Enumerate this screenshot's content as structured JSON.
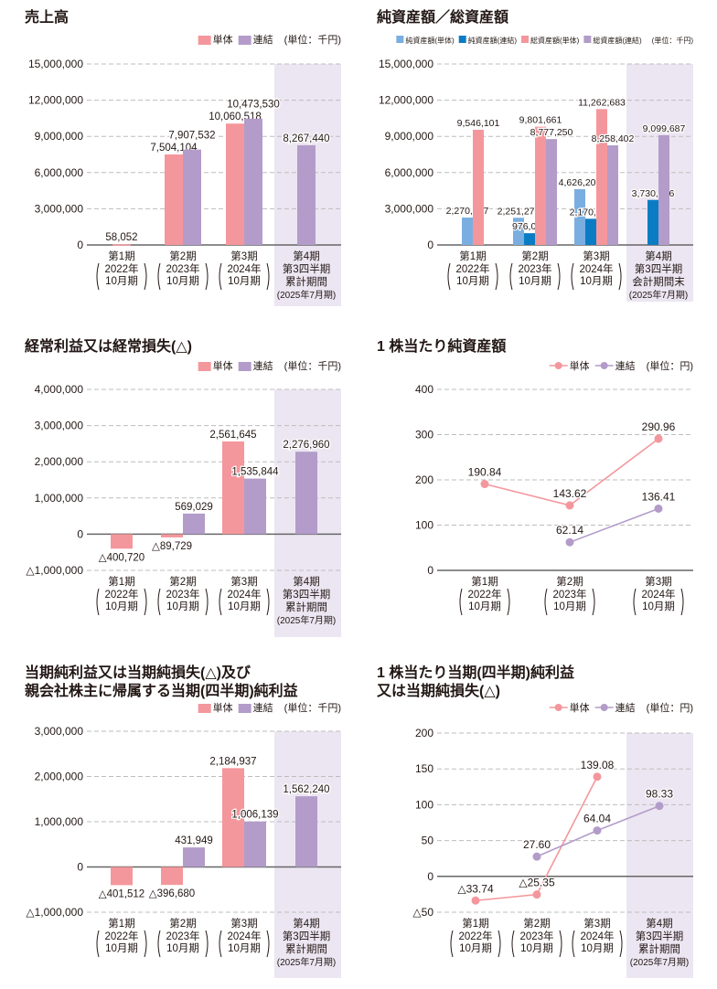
{
  "colors": {
    "pink": "#f4979c",
    "purple": "#b39cc9",
    "lightblue": "#7aaee0",
    "blue": "#0a7cc4",
    "shade": "#ece6f2",
    "grid": "#bdbdbd",
    "axis": "#666666"
  },
  "chart_data": [
    {
      "id": "sales",
      "type": "bar",
      "title": [
        "売上高"
      ],
      "unit": "(単位：千円)",
      "ylim": [
        0,
        15000000
      ],
      "yticks": [
        {
          "v": 0,
          "label": "0"
        },
        {
          "v": 3000000,
          "label": "3,000,000"
        },
        {
          "v": 6000000,
          "label": "6,000,000"
        },
        {
          "v": 9000000,
          "label": "9,000,000"
        },
        {
          "v": 12000000,
          "label": "12,000,000"
        },
        {
          "v": 15000000,
          "label": "15,000,000"
        }
      ],
      "categories": [
        {
          "head": "第1期",
          "paren": [
            "2022年",
            "10月期"
          ]
        },
        {
          "head": "第2期",
          "paren": [
            "2023年",
            "10月期"
          ]
        },
        {
          "head": "第3期",
          "paren": [
            "2024年",
            "10月期"
          ]
        },
        {
          "head": "第4期",
          "lines": [
            "第3四半期",
            "累計期間",
            "(2025年7月期)"
          ]
        }
      ],
      "shaded_category": 3,
      "series": [
        {
          "name": "単体",
          "color": "#f4979c",
          "values": [
            58052,
            7504104,
            10060518,
            null
          ],
          "labels": [
            "58,052",
            "7,504,104",
            "10,060,518",
            null
          ]
        },
        {
          "name": "連結",
          "color": "#b39cc9",
          "values": [
            null,
            7907532,
            10473530,
            8267440
          ],
          "labels": [
            null,
            "7,907,532",
            "10,473,530",
            "8,267,440"
          ]
        }
      ]
    },
    {
      "id": "assets",
      "type": "bar",
      "title": [
        "純資産額／総資産額"
      ],
      "unit": "(単位：千円)",
      "ylim": [
        0,
        15000000
      ],
      "yticks": [
        {
          "v": 0,
          "label": "0"
        },
        {
          "v": 3000000,
          "label": "3,000,000"
        },
        {
          "v": 6000000,
          "label": "6,000,000"
        },
        {
          "v": 9000000,
          "label": "9,000,000"
        },
        {
          "v": 12000000,
          "label": "12,000,000"
        },
        {
          "v": 15000000,
          "label": "15,000,000"
        }
      ],
      "categories": [
        {
          "head": "第1期",
          "paren": [
            "2022年",
            "10月期"
          ]
        },
        {
          "head": "第2期",
          "paren": [
            "2023年",
            "10月期"
          ]
        },
        {
          "head": "第3期",
          "paren": [
            "2024年",
            "10月期"
          ]
        },
        {
          "head": "第4期",
          "lines": [
            "第3四半期",
            "会計期間末",
            "(2025年7月期)"
          ]
        }
      ],
      "shaded_category": 3,
      "series": [
        {
          "name": "純資産額(単体)",
          "color": "#7aaee0",
          "values": [
            2270987,
            2251270,
            4626208,
            null
          ],
          "labels": [
            "2,270,987",
            "2,251,270",
            "4,626,208",
            null
          ]
        },
        {
          "name": "純資産額(連結)",
          "color": "#0a7cc4",
          "values": [
            null,
            976082,
            2170830,
            3730426
          ],
          "labels": [
            null,
            "976,082",
            "2,170,830",
            "3,730,426"
          ]
        },
        {
          "name": "総資産額(単体)",
          "color": "#f4979c",
          "values": [
            9546101,
            9801661,
            11262683,
            null
          ],
          "labels": [
            "9,546,101",
            "9,801,661",
            "11,262,683",
            null
          ]
        },
        {
          "name": "総資産額(連結)",
          "color": "#b39cc9",
          "values": [
            null,
            8777250,
            8258402,
            9099687
          ],
          "labels": [
            null,
            "8,777,250",
            "8,258,402",
            "9,099,687"
          ]
        }
      ]
    },
    {
      "id": "ordinary",
      "type": "bar",
      "title": [
        "経常利益又は経常損失(△)"
      ],
      "unit": "(単位：千円)",
      "ylim": [
        -1000000,
        4000000
      ],
      "yticks": [
        {
          "v": -1000000,
          "label": "△1,000,000"
        },
        {
          "v": 0,
          "label": "0"
        },
        {
          "v": 1000000,
          "label": "1,000,000"
        },
        {
          "v": 2000000,
          "label": "2,000,000"
        },
        {
          "v": 3000000,
          "label": "3,000,000"
        },
        {
          "v": 4000000,
          "label": "4,000,000"
        }
      ],
      "categories": [
        {
          "head": "第1期",
          "paren": [
            "2022年",
            "10月期"
          ]
        },
        {
          "head": "第2期",
          "paren": [
            "2023年",
            "10月期"
          ]
        },
        {
          "head": "第3期",
          "paren": [
            "2024年",
            "10月期"
          ]
        },
        {
          "head": "第4期",
          "lines": [
            "第3四半期",
            "累計期間",
            "(2025年7月期)"
          ]
        }
      ],
      "shaded_category": 3,
      "series": [
        {
          "name": "単体",
          "color": "#f4979c",
          "values": [
            -400720,
            -89729,
            2561645,
            null
          ],
          "labels": [
            "△400,720",
            "△89,729",
            "2,561,645",
            null
          ]
        },
        {
          "name": "連結",
          "color": "#b39cc9",
          "values": [
            null,
            569029,
            1535844,
            2276960
          ],
          "labels": [
            null,
            "569,029",
            "1,535,844",
            "2,276,960"
          ]
        }
      ]
    },
    {
      "id": "bps",
      "type": "line",
      "title": [
        "1 株当たり純資産額"
      ],
      "unit": "(単位：円)",
      "ylim": [
        0,
        400
      ],
      "yticks": [
        {
          "v": 0,
          "label": "0"
        },
        {
          "v": 100,
          "label": "100"
        },
        {
          "v": 200,
          "label": "200"
        },
        {
          "v": 300,
          "label": "300"
        },
        {
          "v": 400,
          "label": "400"
        }
      ],
      "categories": [
        {
          "head": "第1期",
          "paren": [
            "2022年",
            "10月期"
          ]
        },
        {
          "head": "第2期",
          "paren": [
            "2023年",
            "10月期"
          ]
        },
        {
          "head": "第3期",
          "paren": [
            "2024年",
            "10月期"
          ]
        }
      ],
      "shaded_category": null,
      "series": [
        {
          "name": "単体",
          "color": "#f4979c",
          "values": [
            190.84,
            143.62,
            290.96
          ],
          "labels": [
            "190.84",
            "143.62",
            "290.96"
          ]
        },
        {
          "name": "連結",
          "color": "#b39cc9",
          "values": [
            null,
            62.14,
            136.41
          ],
          "labels": [
            null,
            "62.14",
            "136.41"
          ]
        }
      ]
    },
    {
      "id": "netincome",
      "type": "bar",
      "title": [
        "当期純利益又は当期純損失(△)及び",
        "親会社株主に帰属する当期(四半期)純利益"
      ],
      "unit": "(単位：千円)",
      "ylim": [
        -1000000,
        3000000
      ],
      "yticks": [
        {
          "v": -1000000,
          "label": "△1,000,000"
        },
        {
          "v": 0,
          "label": "0"
        },
        {
          "v": 1000000,
          "label": "1,000,000"
        },
        {
          "v": 2000000,
          "label": "2,000,000"
        },
        {
          "v": 3000000,
          "label": "3,000,000"
        }
      ],
      "categories": [
        {
          "head": "第1期",
          "paren": [
            "2022年",
            "10月期"
          ]
        },
        {
          "head": "第2期",
          "paren": [
            "2023年",
            "10月期"
          ]
        },
        {
          "head": "第3期",
          "paren": [
            "2024年",
            "10月期"
          ]
        },
        {
          "head": "第4期",
          "lines": [
            "第3四半期",
            "累計期間",
            "(2025年7月期)"
          ]
        }
      ],
      "shaded_category": 3,
      "series": [
        {
          "name": "単体",
          "color": "#f4979c",
          "values": [
            -401512,
            -396680,
            2184937,
            null
          ],
          "labels": [
            "△401,512",
            "△396,680",
            "2,184,937",
            null
          ]
        },
        {
          "name": "連結",
          "color": "#b39cc9",
          "values": [
            null,
            431949,
            1006139,
            1562240
          ],
          "labels": [
            null,
            "431,949",
            "1,006,139",
            "1,562,240"
          ]
        }
      ]
    },
    {
      "id": "eps",
      "type": "line",
      "title": [
        "1 株当たり当期(四半期)純利益",
        "又は当期純損失(△)"
      ],
      "unit": "(単位：円)",
      "ylim": [
        -50,
        200
      ],
      "yticks": [
        {
          "v": -50,
          "label": "△50"
        },
        {
          "v": 0,
          "label": "0"
        },
        {
          "v": 50,
          "label": "50"
        },
        {
          "v": 100,
          "label": "100"
        },
        {
          "v": 150,
          "label": "150"
        },
        {
          "v": 200,
          "label": "200"
        }
      ],
      "categories": [
        {
          "head": "第1期",
          "paren": [
            "2022年",
            "10月期"
          ]
        },
        {
          "head": "第2期",
          "paren": [
            "2023年",
            "10月期"
          ]
        },
        {
          "head": "第3期",
          "paren": [
            "2024年",
            "10月期"
          ]
        },
        {
          "head": "第4期",
          "lines": [
            "第3四半期",
            "累計期間",
            "(2025年7月期)"
          ]
        }
      ],
      "shaded_category": 3,
      "series": [
        {
          "name": "単体",
          "color": "#f4979c",
          "values": [
            -33.74,
            -25.35,
            139.08,
            null
          ],
          "labels": [
            "△33.74",
            "△25.35",
            "139.08",
            null
          ]
        },
        {
          "name": "連結",
          "color": "#b39cc9",
          "values": [
            null,
            27.6,
            64.04,
            98.33
          ],
          "labels": [
            null,
            "27.60",
            "64.04",
            "98.33"
          ]
        }
      ]
    }
  ]
}
